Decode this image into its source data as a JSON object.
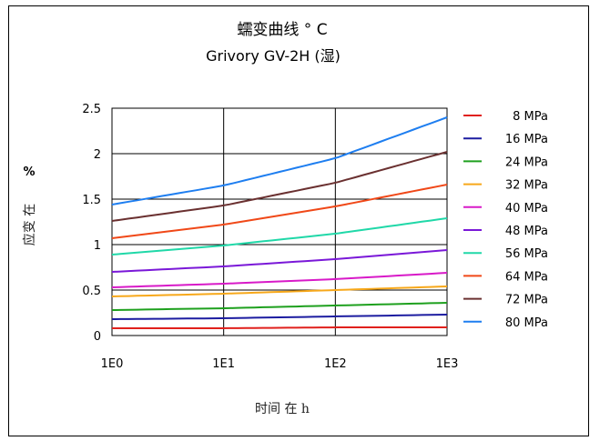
{
  "chart_data": {
    "type": "line",
    "title": "蠕变曲线 ° C",
    "subtitle": "Grivory GV-2H (湿)",
    "xlabel": "时间 在 h",
    "ylabel": "应变 在 %",
    "ylabel_unit": "%",
    "ylabel_text": "应变 在",
    "x_scale": "log",
    "x_ticks": [
      "1E0",
      "1E1",
      "1E2",
      "1E3"
    ],
    "y_ticks": [
      "0",
      "0.5",
      "1",
      "1.5",
      "2",
      "2.5"
    ],
    "xlim": [
      1,
      1000
    ],
    "ylim": [
      0,
      2.5
    ],
    "grid": true,
    "legend_position": "right",
    "x": [
      1,
      10,
      100,
      1000
    ],
    "series": [
      {
        "name": "8 MPa",
        "color": "#e0201c",
        "values": [
          0.08,
          0.08,
          0.09,
          0.09
        ]
      },
      {
        "name": "16 MPa",
        "color": "#1c1ca0",
        "values": [
          0.18,
          0.19,
          0.21,
          0.23
        ]
      },
      {
        "name": "24 MPa",
        "color": "#1ea01e",
        "values": [
          0.28,
          0.3,
          0.33,
          0.36
        ]
      },
      {
        "name": "32 MPa",
        "color": "#f7a81a",
        "values": [
          0.43,
          0.46,
          0.5,
          0.54
        ]
      },
      {
        "name": "40 MPa",
        "color": "#d81ac8",
        "values": [
          0.53,
          0.57,
          0.62,
          0.69
        ]
      },
      {
        "name": "48 MPa",
        "color": "#7a18d8",
        "values": [
          0.7,
          0.76,
          0.84,
          0.94
        ]
      },
      {
        "name": "56 MPa",
        "color": "#20d8a8",
        "values": [
          0.89,
          0.99,
          1.12,
          1.29
        ]
      },
      {
        "name": "64 MPa",
        "color": "#f04818",
        "values": [
          1.07,
          1.22,
          1.42,
          1.66
        ]
      },
      {
        "name": "72 MPa",
        "color": "#6a3030",
        "values": [
          1.26,
          1.43,
          1.68,
          2.02
        ]
      },
      {
        "name": "80 MPa",
        "color": "#1e7ef0",
        "values": [
          1.44,
          1.65,
          1.95,
          2.4
        ]
      }
    ]
  }
}
